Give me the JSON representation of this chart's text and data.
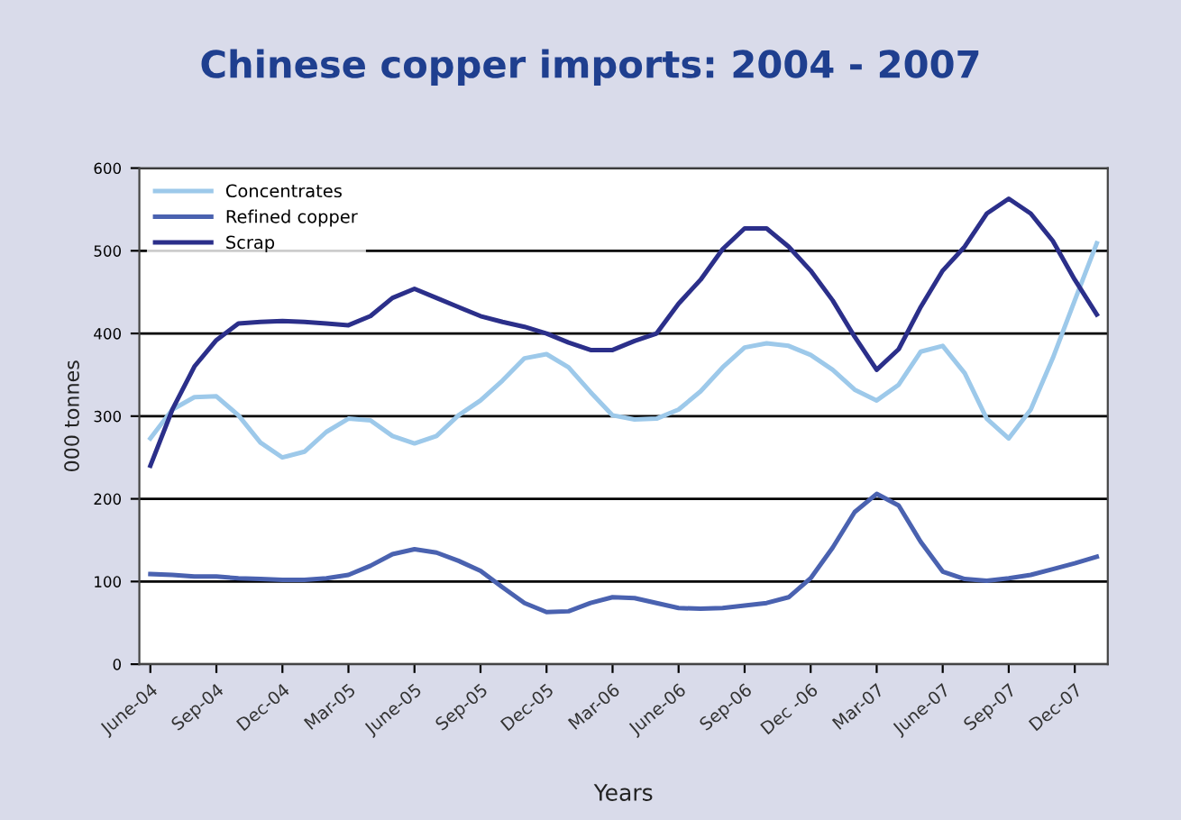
{
  "chart_data": {
    "type": "line",
    "title": "Chinese copper imports: 2004 - 2007",
    "xlabel": "Years",
    "ylabel": "000 tonnes",
    "categories": [
      "June-04",
      null,
      null,
      "Sep-04",
      null,
      null,
      "Dec-04",
      null,
      null,
      "Mar-05",
      null,
      null,
      "June-05",
      null,
      null,
      "Sep-05",
      null,
      null,
      "Dec-05",
      null,
      null,
      "Mar-06",
      null,
      null,
      "June-06",
      null,
      null,
      "Sep-06",
      null,
      null,
      "Dec -06",
      null,
      null,
      "Mar-07",
      null,
      null,
      "June-07",
      null,
      null,
      "Sep-07",
      null,
      null,
      "Dec-07",
      null
    ],
    "series": [
      {
        "name": "Concentrates",
        "color": "#9dc9ea",
        "values": [
          273,
          308,
          323,
          324,
          301,
          268,
          250,
          257,
          281,
          297,
          295,
          276,
          267,
          276,
          301,
          319,
          343,
          370,
          375,
          359,
          329,
          301,
          296,
          297,
          308,
          330,
          359,
          383,
          388,
          385,
          374,
          356,
          332,
          319,
          338,
          378,
          385,
          352,
          297,
          273,
          308,
          370,
          440,
          509
        ]
      },
      {
        "name": "Refined copper",
        "color": "#4a62b0",
        "values": [
          109,
          108,
          106,
          106,
          104,
          103,
          102,
          102,
          104,
          108,
          119,
          133,
          139,
          135,
          125,
          113,
          93,
          74,
          63,
          64,
          74,
          81,
          80,
          74,
          68,
          67,
          68,
          71,
          74,
          81,
          104,
          141,
          184,
          206,
          192,
          148,
          112,
          103,
          101,
          104,
          108,
          115,
          122,
          130
        ]
      },
      {
        "name": "Scrap",
        "color": "#2b2f8a",
        "values": [
          240,
          308,
          360,
          392,
          412,
          414,
          415,
          414,
          412,
          410,
          421,
          443,
          454,
          443,
          432,
          421,
          414,
          408,
          400,
          389,
          380,
          380,
          391,
          400,
          436,
          465,
          502,
          527,
          527,
          505,
          476,
          440,
          396,
          356,
          381,
          432,
          476,
          505,
          545,
          563,
          545,
          512,
          465,
          423
        ]
      }
    ],
    "ylim": [
      0,
      600
    ],
    "yticks": [
      0,
      100,
      200,
      300,
      400,
      500,
      600
    ],
    "grid": "y",
    "legend": "top left",
    "marker": "none",
    "line_style": "solid"
  }
}
